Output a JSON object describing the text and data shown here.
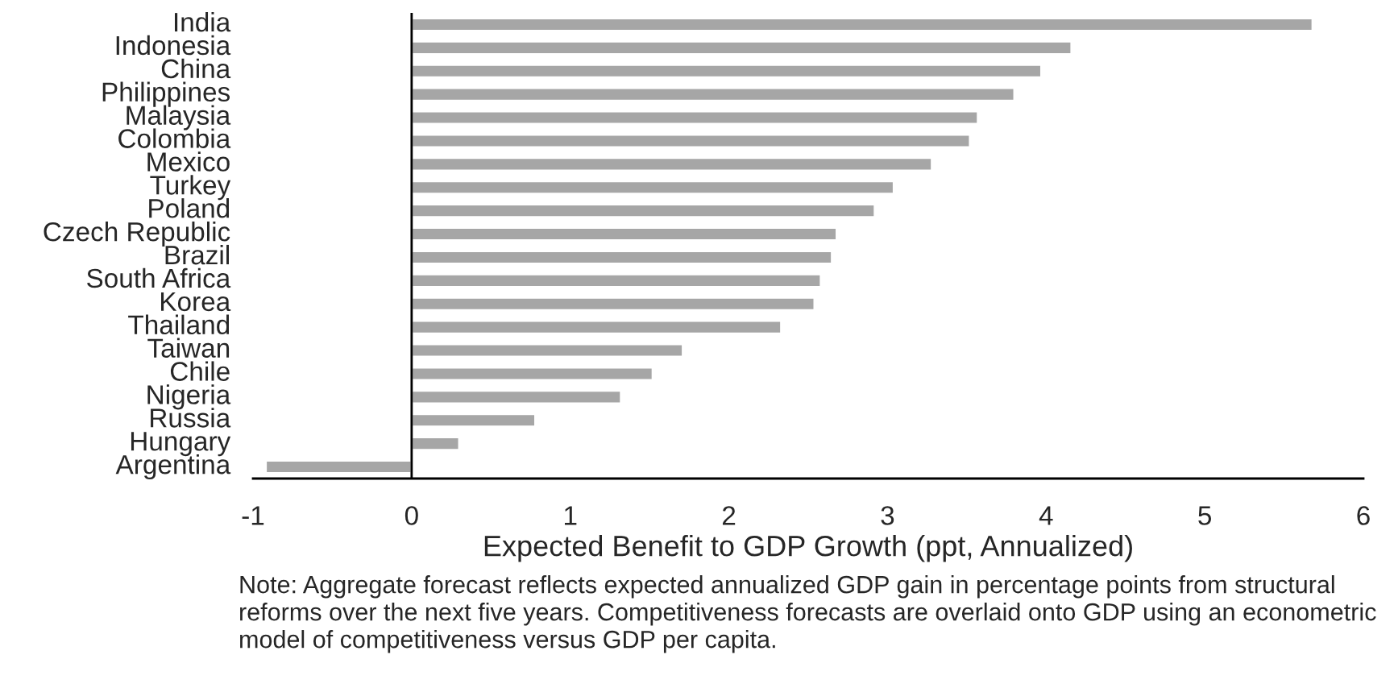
{
  "chart_data": {
    "type": "bar",
    "orientation": "horizontal",
    "categories": [
      "India",
      "Indonesia",
      "China",
      "Philippines",
      "Malaysia",
      "Colombia",
      "Mexico",
      "Turkey",
      "Poland",
      "Czech Republic",
      "Brazil",
      "South Africa",
      "Korea",
      "Thailand",
      "Taiwan",
      "Chile",
      "Nigeria",
      "Russia",
      "Hungary",
      "Argentina"
    ],
    "values": [
      5.68,
      4.16,
      3.97,
      3.8,
      3.57,
      3.52,
      3.28,
      3.04,
      2.92,
      2.68,
      2.65,
      2.58,
      2.54,
      2.33,
      1.71,
      1.52,
      1.32,
      0.78,
      0.3,
      -0.92
    ],
    "color": "#a6a6a6",
    "xlim": [
      -1,
      6
    ],
    "xticks": [
      -1,
      0,
      1,
      2,
      3,
      4,
      5,
      6
    ],
    "xlabel": "Expected Benefit to GDP Growth (ppt, Annualized)",
    "ref_lines": [
      {
        "axis": "x",
        "value": 0,
        "color": "#000000"
      }
    ],
    "grid": false,
    "legend": false,
    "annotations": [
      "Note: Aggregate forecast reflects expected annualized GDP gain in percentage points from structural reforms over the next five years. Competitiveness forecasts are overlaid onto GDP using an econometric model of competitiveness versus GDP per capita."
    ]
  }
}
